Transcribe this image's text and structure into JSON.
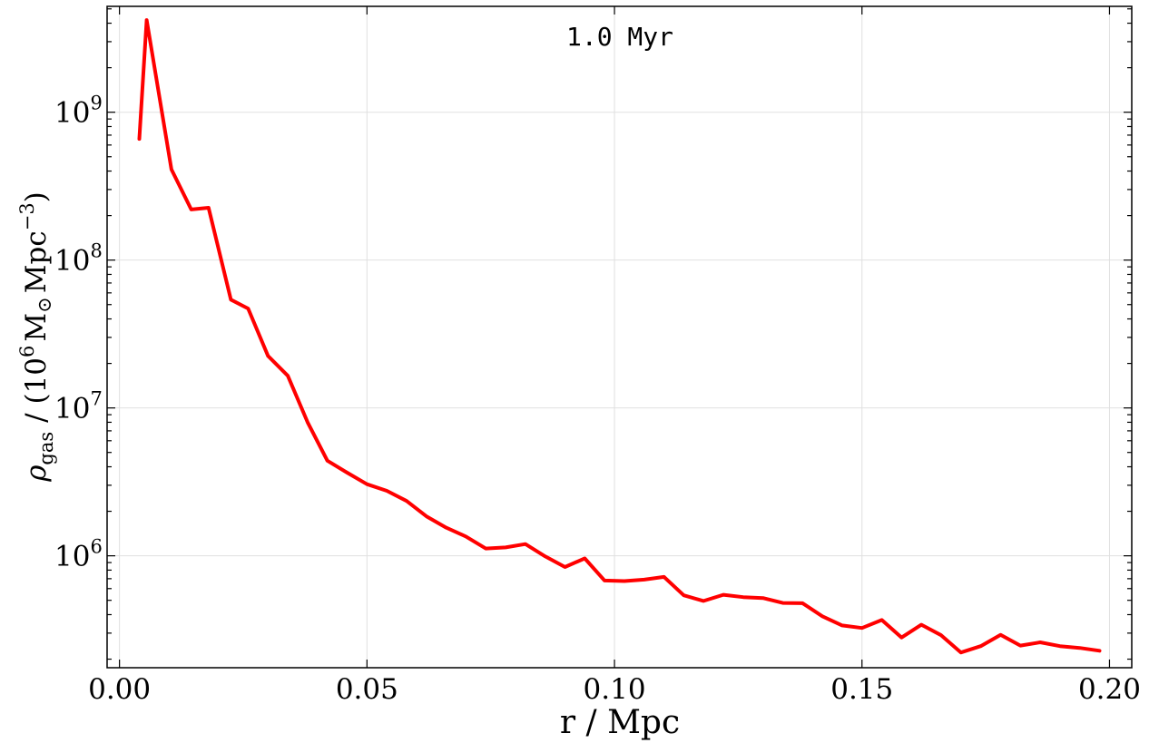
{
  "chart_data": {
    "type": "line",
    "annotation": "1.0 Myr",
    "xlabel": "r / Mpc",
    "ylabel": {
      "symbol": "ρ",
      "subscript": "gas",
      "unit_prefix": "/ (10",
      "unit_exponent": "6",
      "unit_mass": "M",
      "unit_sun": "⊙",
      "unit_rest": "Mpc",
      "unit_exp2": "−3",
      "unit_close": ")"
    },
    "xlim": [
      -0.0025,
      0.2045
    ],
    "ylim": [
      175000,
      5200000000
    ],
    "yscale": "log",
    "grid": true,
    "x_ticks": [
      {
        "value": 0.0,
        "label": "0.00"
      },
      {
        "value": 0.05,
        "label": "0.05"
      },
      {
        "value": 0.1,
        "label": "0.10"
      },
      {
        "value": 0.15,
        "label": "0.15"
      },
      {
        "value": 0.2,
        "label": "0.20"
      }
    ],
    "y_ticks": [
      {
        "value": 1000000,
        "base": "10",
        "exp": "6"
      },
      {
        "value": 10000000,
        "base": "10",
        "exp": "7"
      },
      {
        "value": 100000000,
        "base": "10",
        "exp": "8"
      },
      {
        "value": 1000000000,
        "base": "10",
        "exp": "9"
      }
    ],
    "line_color": "#ff0000",
    "series": [
      {
        "x": [
          0.004,
          0.0055,
          0.0105,
          0.0145,
          0.018,
          0.0225,
          0.026,
          0.03,
          0.034,
          0.038,
          0.042,
          0.046,
          0.05,
          0.054,
          0.058,
          0.062,
          0.066,
          0.07,
          0.074,
          0.078,
          0.082,
          0.086,
          0.09,
          0.094,
          0.098,
          0.102,
          0.106,
          0.11,
          0.114,
          0.118,
          0.122,
          0.126,
          0.13,
          0.134,
          0.138,
          0.142,
          0.146,
          0.15,
          0.154,
          0.158,
          0.162,
          0.166,
          0.17,
          0.174,
          0.178,
          0.182,
          0.186,
          0.19,
          0.194,
          0.198
        ],
        "y": [
          660000000,
          4200000000,
          410000000,
          220000000,
          226000000,
          54000000,
          47000000,
          22500000,
          16500000,
          8000000,
          4400000,
          3650000,
          3050000,
          2750000,
          2350000,
          1850000,
          1550000,
          1350000,
          1120000,
          1140000,
          1200000,
          990000,
          840000,
          960000,
          680000,
          675000,
          690000,
          720000,
          540000,
          495000,
          545000,
          525000,
          518000,
          480000,
          478000,
          390000,
          338000,
          325000,
          368000,
          280000,
          342000,
          290000,
          222000,
          245000,
          292000,
          247000,
          260000,
          245000,
          238000,
          228000
        ]
      }
    ]
  }
}
